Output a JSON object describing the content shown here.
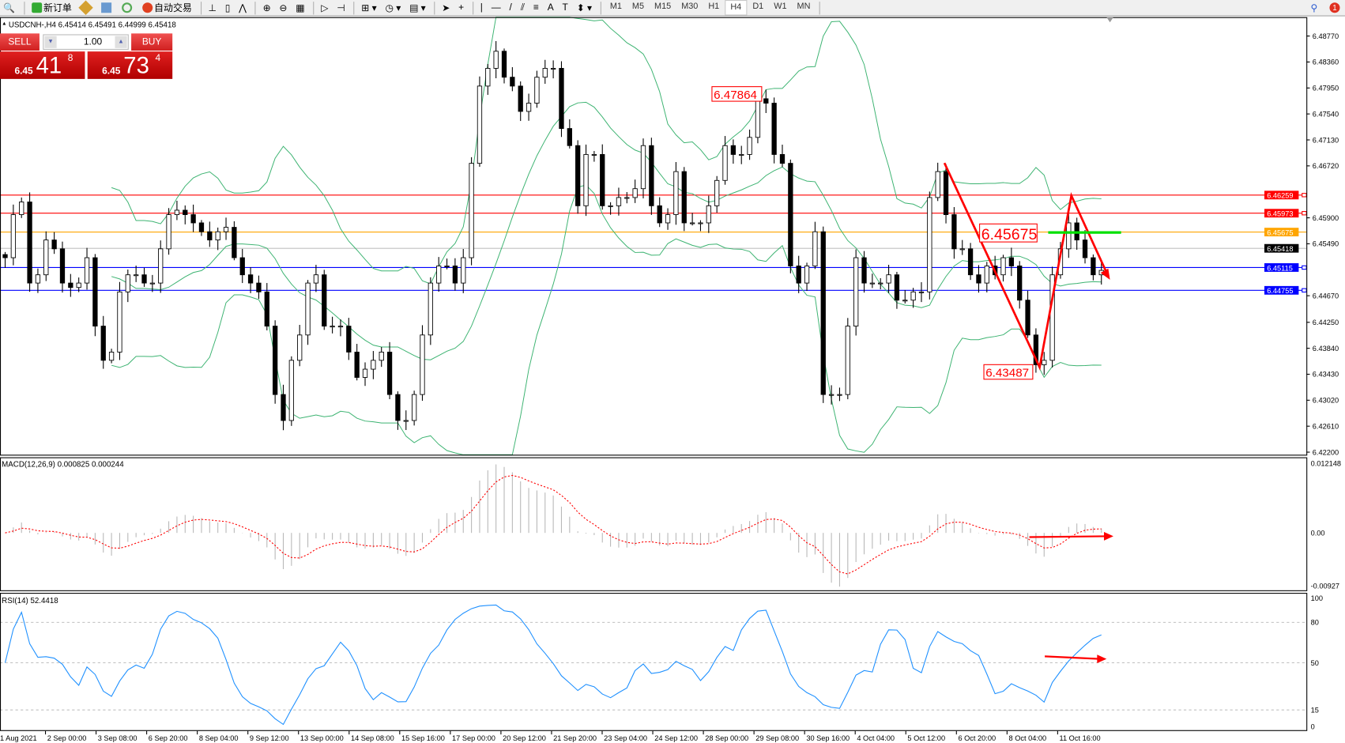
{
  "toolbar": {
    "new_order": "新订单",
    "auto_trading": "自动交易",
    "timeframes": [
      "M1",
      "M5",
      "M15",
      "M30",
      "H1",
      "H4",
      "D1",
      "W1",
      "MN"
    ],
    "active_timeframe": "H4",
    "notification_count": "1"
  },
  "chart": {
    "symbol_info": "USDCNH-,H4  6.45414 6.45491 6.44999 6.45418",
    "price_axis": [
      "6.48770",
      "6.48360",
      "6.47950",
      "6.47540",
      "6.47130",
      "6.46720",
      "6.45900",
      "6.45490",
      "6.44670",
      "6.44250",
      "6.43840",
      "6.43430",
      "6.43020",
      "6.42610",
      "6.42200"
    ],
    "price_range": [
      6.422,
      6.4877
    ],
    "levels": [
      {
        "price": 6.46259,
        "label": "6.46259",
        "color": "#ff0000"
      },
      {
        "price": 6.45973,
        "label": "6.45973",
        "color": "#ff0000"
      },
      {
        "price": 6.45675,
        "label": "6.45675",
        "color": "#ffa500"
      },
      {
        "price": 6.45418,
        "label": "6.45418",
        "color": "#000000"
      },
      {
        "price": 6.45115,
        "label": "6.45115",
        "color": "#0000ff"
      },
      {
        "price": 6.44755,
        "label": "6.44755",
        "color": "#0000ff"
      }
    ],
    "annotations": {
      "high": "6.47864",
      "mid": "6.45675",
      "low": "6.43487"
    },
    "closes": [
      6.4527,
      6.4595,
      6.4615,
      6.4487,
      6.45,
      6.4555,
      6.4541,
      6.4487,
      6.448,
      6.4487,
      6.4527,
      6.4419,
      6.4365,
      6.4378,
      6.4473,
      6.45,
      6.45,
      6.4487,
      6.4487,
      6.4541,
      6.4595,
      6.4602,
      6.4595,
      6.4582,
      6.4568,
      6.4555,
      6.4568,
      6.4575,
      6.4527,
      6.45,
      6.4487,
      6.4473,
      6.4419,
      6.4311,
      6.427,
      6.4365,
      6.4405,
      6.4487,
      6.45,
      6.4419,
      6.4419,
      6.4419,
      6.4378,
      6.4338,
      6.4351,
      6.4365,
      6.4378,
      6.4311,
      6.427,
      6.427,
      6.4311,
      6.4405,
      6.4487,
      6.4514,
      6.4514,
      6.4487,
      6.4527,
      6.4676,
      6.4798,
      6.4826,
      6.4853,
      6.4812,
      6.4798,
      6.4758,
      6.4771,
      6.4812,
      6.4826,
      6.4826,
      6.4731,
      6.4704,
      6.4609,
      6.469,
      6.469,
      6.4609,
      6.4609,
      6.4622,
      6.4622,
      6.4636,
      6.4704,
      6.4609,
      6.4582,
      6.4595,
      6.4663,
      6.4582,
      6.4582,
      6.4582,
      6.4609,
      6.4649,
      6.4704,
      6.469,
      6.469,
      6.4717,
      6.4778,
      6.4771,
      6.469,
      6.4676,
      6.4514,
      6.4487,
      6.4514,
      6.4568,
      6.4311,
      6.4311,
      6.4311,
      6.4419,
      6.4527,
      6.4487,
      6.4487,
      6.4487,
      6.45,
      6.446,
      6.446,
      6.4473,
      6.4473,
      6.4622,
      6.4663,
      6.4595,
      6.4541,
      6.4541,
      6.45,
      6.4487,
      6.4514,
      6.45,
      6.4527,
      6.4514,
      6.446,
      6.4405,
      6.4358,
      6.4365,
      6.45,
      6.4541,
      6.4582,
      6.4555,
      6.4527,
      6.45,
      6.4507
    ]
  },
  "macd": {
    "label": "MACD(12,26,9) 0.000825 0.000244",
    "axis": [
      "0.012148",
      "0.00",
      "-0.00927"
    ],
    "range": [
      -0.00927,
      0.012148
    ]
  },
  "rsi": {
    "label": "RSI(14) 52.4418",
    "axis": [
      "100",
      "80",
      "50",
      "15",
      "0"
    ],
    "levels": [
      80,
      50,
      15
    ]
  },
  "time_axis": [
    "1 Aug 2021",
    "2 Sep 00:00",
    "3 Sep 08:00",
    "6 Sep 20:00",
    "8 Sep 04:00",
    "9 Sep 12:00",
    "13 Sep 00:00",
    "14 Sep 08:00",
    "15 Sep 16:00",
    "17 Sep 00:00",
    "20 Sep 12:00",
    "21 Sep 20:00",
    "23 Sep 04:00",
    "24 Sep 12:00",
    "28 Sep 00:00",
    "29 Sep 08:00",
    "30 Sep 16:00",
    "4 Oct 04:00",
    "5 Oct 12:00",
    "6 Oct 20:00",
    "8 Oct 04:00",
    "11 Oct 16:00"
  ],
  "trade_panel": {
    "sell": "SELL",
    "buy": "BUY",
    "lot": "1.00",
    "sell_prefix": "6.45",
    "sell_big": "41",
    "sell_sup": "8",
    "buy_prefix": "6.45",
    "buy_big": "73",
    "buy_sup": "4"
  },
  "colors": {
    "bands": "#3cb371",
    "macd_signal": "#ff0000",
    "macd_hist": "#b8b8b8",
    "rsi": "#1e90ff",
    "annotation": "#ff0000",
    "green_line": "#00e000"
  }
}
